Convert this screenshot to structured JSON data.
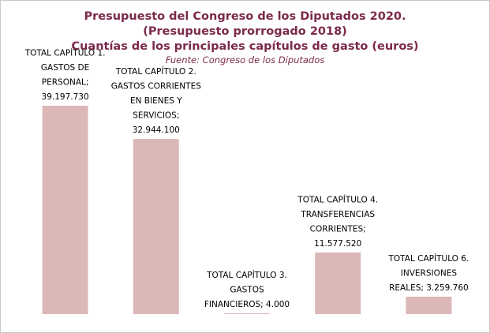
{
  "chart_data": {
    "type": "bar",
    "title": "Presupuesto del Congreso de los Diputados 2020.",
    "title_line2": "(Presupuesto prorrogado 2018)",
    "subtitle": "Cuantías de los principales capítulos de gasto (euros)",
    "source": "Fuente:  Congreso de los Diputados",
    "categories": [
      "TOTAL CAPÍTULO 1. GASTOS DE PERSONAL",
      "TOTAL CAPÍTULO 2. GASTOS CORRIENTES EN BIENES Y SERVICIOS",
      "TOTAL CAPÍTULO 3. GASTOS FINANCIEROS",
      "TOTAL CAPÍTULO 4. TRANSFERENCIAS CORRIENTES",
      "TOTAL CAPÍTULO 6. INVERSIONES REALES"
    ],
    "values": [
      39197730,
      32944100,
      4000,
      11577520,
      3259760
    ],
    "value_labels": [
      "39.197.730",
      "32.944.100",
      "4.000",
      "11.577.520",
      "3.259.760"
    ],
    "data_labels": [
      [
        "TOTAL CAPÍTULO 1.",
        "GASTOS DE",
        "PERSONAL;",
        "39.197.730"
      ],
      [
        "TOTAL CAPÍTULO 2.",
        "GASTOS CORRIENTES",
        "EN BIENES Y",
        "SERVICIOS;",
        "32.944.100"
      ],
      [
        "TOTAL CAPÍTULO 3.",
        "GASTOS",
        "FINANCIEROS;  4.000"
      ],
      [
        "TOTAL CAPÍTULO 4.",
        "TRANSFERENCIAS",
        "CORRIENTES;",
        "11.577.520"
      ],
      [
        "TOTAL CAPÍTULO 6.",
        "INVERSIONES",
        "REALES;  3.259.760"
      ]
    ],
    "ylim": [
      0,
      45000000
    ],
    "grid": false,
    "legend": "none",
    "colors": {
      "bar": "#dcb7b7",
      "title": "#7b2a4d",
      "frame": "#c9c9c9"
    }
  }
}
